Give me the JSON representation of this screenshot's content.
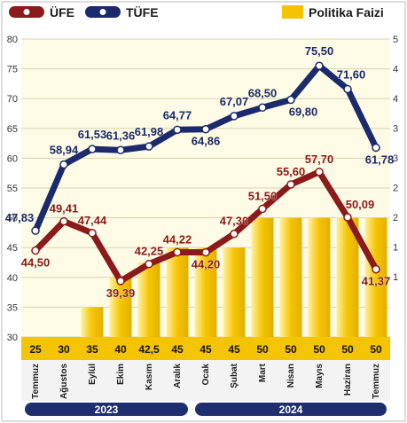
{
  "chart_data": {
    "type": "bar+line",
    "categories": [
      "Temmuz",
      "Ağustos",
      "Eylül",
      "Ekim",
      "Kasım",
      "Aralık",
      "Ocak",
      "Şubat",
      "Mart",
      "Nisan",
      "Mayıs",
      "Haziran",
      "Temmuz"
    ],
    "bar_series": {
      "name": "Politika Faizi",
      "values": [
        25,
        30,
        35,
        40,
        42.5,
        45,
        45,
        45,
        50,
        50,
        50,
        50,
        50
      ],
      "value_labels": [
        "25",
        "30",
        "35",
        "40",
        "42,5",
        "45",
        "45",
        "45",
        "50",
        "50",
        "50",
        "50",
        "50"
      ]
    },
    "series": [
      {
        "name": "ÜFE",
        "values": [
          44.5,
          49.41,
          47.44,
          39.39,
          42.25,
          44.22,
          44.2,
          47.3,
          51.5,
          55.6,
          57.7,
          50.09,
          41.37
        ],
        "value_labels": [
          "44,50",
          "49,41",
          "47,44",
          "39,39",
          "42,25",
          "44,22",
          "44,20",
          "47,30",
          "51,50",
          "55,60",
          "57,70",
          "50,09",
          "41,37"
        ],
        "color": "#8b1a1a"
      },
      {
        "name": "TÜFE",
        "values": [
          47.83,
          58.94,
          61.53,
          61.36,
          61.98,
          64.77,
          64.86,
          67.07,
          68.5,
          69.8,
          75.5,
          71.6,
          61.78
        ],
        "value_labels": [
          "47,83",
          "58,94",
          "61,53",
          "61,36",
          "61,98",
          "64,77",
          "64,86",
          "67,07",
          "68,50",
          "69,80",
          "75,50",
          "71,60",
          "61,78"
        ],
        "color": "#1a2a6c"
      }
    ],
    "y_left_ticks": [
      "80",
      "75",
      "70",
      "65",
      "60",
      "55",
      "50",
      "45",
      "40",
      "35",
      "30"
    ],
    "y_right_ticks": [
      "5",
      "4",
      "4",
      "3",
      "3",
      "2",
      "2",
      "1",
      "1"
    ],
    "ylim": [
      30,
      80
    ],
    "years": [
      {
        "label": "2023"
      },
      {
        "label": "2024"
      }
    ],
    "year_spans": [
      [
        0,
        5
      ],
      [
        6,
        12
      ]
    ],
    "colors": {
      "bar": "#f5c400",
      "bar_light": "#fff1a0",
      "ufe_line": "#8b1a1a",
      "tufe_line": "#1a2a6c",
      "year_band": "#1f2e6e",
      "plot_bg": "#fdfbe6"
    },
    "legend": {
      "ufe": "ÜFE",
      "tufe": "TÜFE",
      "policy": "Politika Faizi"
    }
  }
}
